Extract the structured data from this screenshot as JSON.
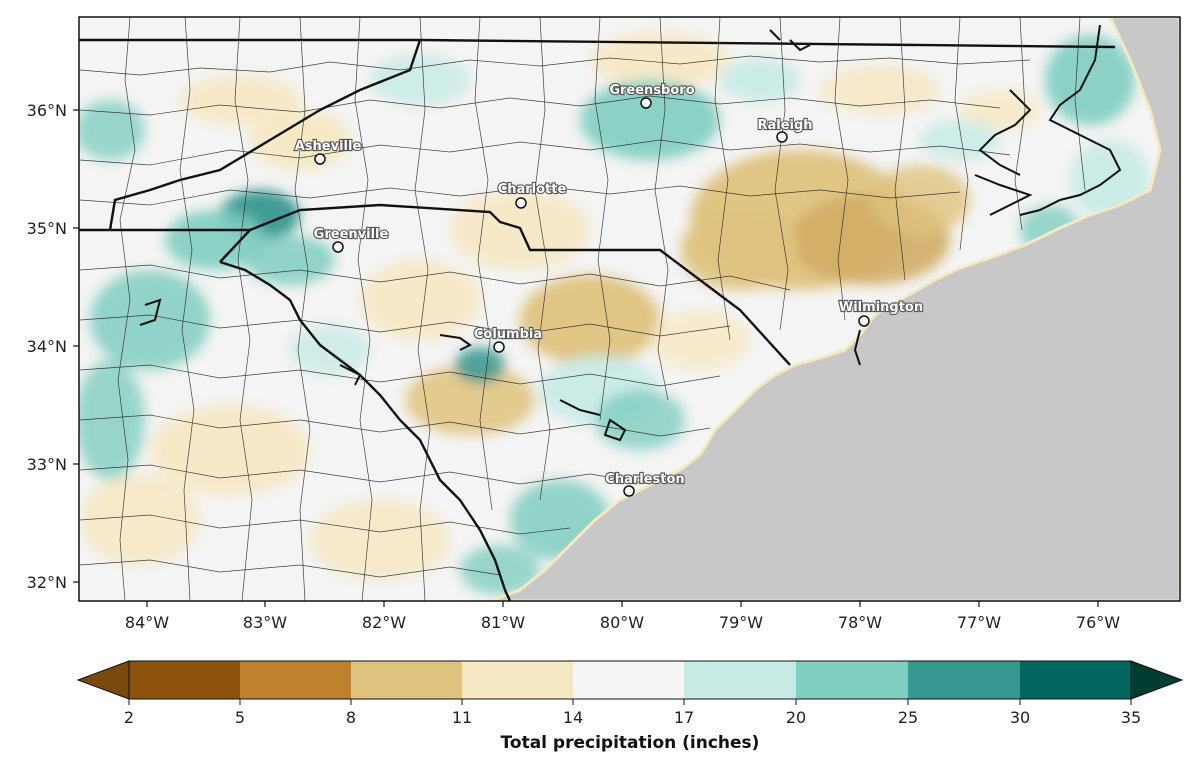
{
  "map": {
    "lon_ticks": [
      "84°W",
      "83°W",
      "82°W",
      "81°W",
      "80°W",
      "79°W",
      "78°W",
      "77°W",
      "76°W"
    ],
    "lat_ticks": [
      "36°N",
      "35°N",
      "34°N",
      "33°N",
      "32°N"
    ],
    "cities": [
      {
        "name": "Greensboro"
      },
      {
        "name": "Raleigh"
      },
      {
        "name": "Asheville"
      },
      {
        "name": "Charlotte"
      },
      {
        "name": "Greenville"
      },
      {
        "name": "Columbia"
      },
      {
        "name": "Wilmington"
      },
      {
        "name": "Charleston"
      }
    ],
    "land_bg": "#f4f4f4",
    "ocean_color": "#c8c8c8",
    "border_color": "#111111"
  },
  "colorbar": {
    "title": "Total precipitation (inches)",
    "tick_labels": [
      "2",
      "5",
      "8",
      "11",
      "14",
      "17",
      "20",
      "25",
      "30",
      "35"
    ],
    "colors": [
      "#7a4a0c",
      "#8c510a",
      "#bf812d",
      "#dfc27d",
      "#f6e8c3",
      "#f5f5f5",
      "#c7eae5",
      "#80cdc1",
      "#35978f",
      "#01665e",
      "#003c30"
    ]
  }
}
